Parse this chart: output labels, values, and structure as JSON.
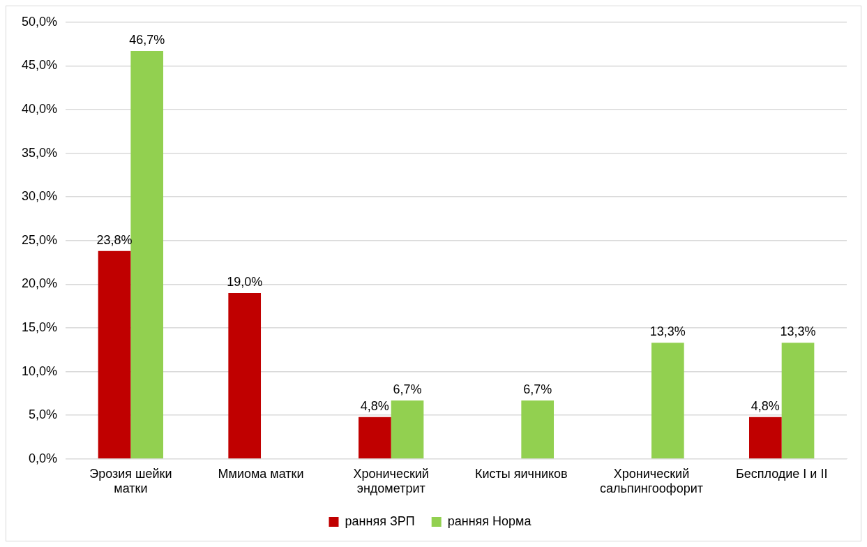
{
  "chart_data": {
    "type": "bar",
    "categories": [
      "Эрозия шейки матки",
      "Ммиома матки",
      "Хронический эндометрит",
      "Кисты яичников",
      "Хронический сальпингоофорит",
      "Бесплодие I и II"
    ],
    "series": [
      {
        "name": "ранняя ЗРП",
        "color": "#c00000",
        "values": [
          23.8,
          19.0,
          4.8,
          null,
          null,
          4.8
        ],
        "value_labels": [
          "23,8%",
          "19,0%",
          "4,8%",
          null,
          null,
          "4,8%"
        ]
      },
      {
        "name": "ранняя Норма",
        "color": "#92d050",
        "values": [
          46.7,
          null,
          6.7,
          6.7,
          13.3,
          13.3
        ],
        "value_labels": [
          "46,7%",
          null,
          "6,7%",
          "6,7%",
          "13,3%",
          "13,3%"
        ]
      }
    ],
    "ylim": [
      0,
      50
    ],
    "yticks": [
      {
        "value": 0,
        "label": "0,0%"
      },
      {
        "value": 5,
        "label": "5,0%"
      },
      {
        "value": 10,
        "label": "10,0%"
      },
      {
        "value": 15,
        "label": "15,0%"
      },
      {
        "value": 20,
        "label": "20,0%"
      },
      {
        "value": 25,
        "label": "25,0%"
      },
      {
        "value": 30,
        "label": "30,0%"
      },
      {
        "value": 35,
        "label": "35,0%"
      },
      {
        "value": 40,
        "label": "40,0%"
      },
      {
        "value": 45,
        "label": "45,0%"
      },
      {
        "value": 50,
        "label": "50,0%"
      }
    ],
    "grid": "y",
    "legend": "bottom"
  }
}
